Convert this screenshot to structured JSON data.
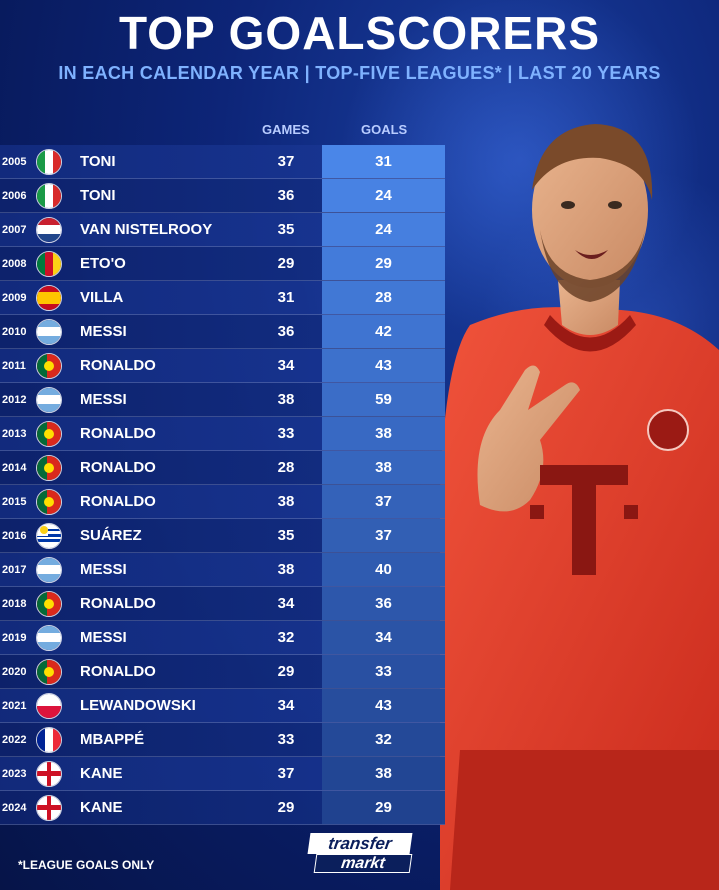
{
  "header": {
    "title": "TOP GOALSCORERS",
    "subtitle": "IN EACH CALENDAR YEAR | TOP-FIVE LEAGUES* | LAST 20 YEARS"
  },
  "columns": {
    "games": "GAMES",
    "goals": "GOALS"
  },
  "rows": [
    {
      "year": "2005",
      "flag": "italy",
      "name": "TONI",
      "games": "37",
      "goals": "31"
    },
    {
      "year": "2006",
      "flag": "italy",
      "name": "TONI",
      "games": "36",
      "goals": "24"
    },
    {
      "year": "2007",
      "flag": "netherlands",
      "name": "VAN NISTELROOY",
      "games": "35",
      "goals": "24"
    },
    {
      "year": "2008",
      "flag": "cameroon",
      "name": "ETO'O",
      "games": "29",
      "goals": "29"
    },
    {
      "year": "2009",
      "flag": "spain",
      "name": "VILLA",
      "games": "31",
      "goals": "28"
    },
    {
      "year": "2010",
      "flag": "argentina",
      "name": "MESSI",
      "games": "36",
      "goals": "42"
    },
    {
      "year": "2011",
      "flag": "portugal",
      "name": "RONALDO",
      "games": "34",
      "goals": "43"
    },
    {
      "year": "2012",
      "flag": "argentina",
      "name": "MESSI",
      "games": "38",
      "goals": "59"
    },
    {
      "year": "2013",
      "flag": "portugal",
      "name": "RONALDO",
      "games": "33",
      "goals": "38"
    },
    {
      "year": "2014",
      "flag": "portugal",
      "name": "RONALDO",
      "games": "28",
      "goals": "38"
    },
    {
      "year": "2015",
      "flag": "portugal",
      "name": "RONALDO",
      "games": "38",
      "goals": "37"
    },
    {
      "year": "2016",
      "flag": "uruguay",
      "name": "SUÁREZ",
      "games": "35",
      "goals": "37"
    },
    {
      "year": "2017",
      "flag": "argentina",
      "name": "MESSI",
      "games": "38",
      "goals": "40"
    },
    {
      "year": "2018",
      "flag": "portugal",
      "name": "RONALDO",
      "games": "34",
      "goals": "36"
    },
    {
      "year": "2019",
      "flag": "argentina",
      "name": "MESSI",
      "games": "32",
      "goals": "34"
    },
    {
      "year": "2020",
      "flag": "portugal",
      "name": "RONALDO",
      "games": "29",
      "goals": "33"
    },
    {
      "year": "2021",
      "flag": "poland",
      "name": "LEWANDOWSKI",
      "games": "34",
      "goals": "43"
    },
    {
      "year": "2022",
      "flag": "france",
      "name": "MBAPPÉ",
      "games": "33",
      "goals": "32"
    },
    {
      "year": "2023",
      "flag": "england",
      "name": "KANE",
      "games": "37",
      "goals": "38"
    },
    {
      "year": "2024",
      "flag": "england",
      "name": "KANE",
      "games": "29",
      "goals": "29"
    }
  ],
  "footnote": "*LEAGUE GOALS ONLY",
  "logo": {
    "line1": "transfer",
    "line2": "markt"
  },
  "colors": {
    "background": "#0d2578",
    "subtitle": "#7fb2ff",
    "goals_top": "#4a86e8",
    "goals_bottom": "#20428f",
    "jersey": "#e8412c"
  }
}
